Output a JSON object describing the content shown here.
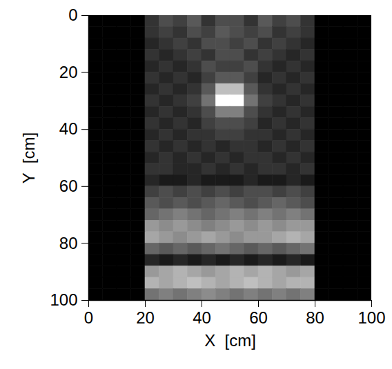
{
  "chart_data": {
    "type": "heatmap",
    "xlabel": "X  [cm]",
    "ylabel": "Y  [cm]",
    "xlim": [
      0,
      100
    ],
    "ylim": [
      0,
      100
    ],
    "xticks": [
      0,
      20,
      40,
      60,
      80,
      100
    ],
    "yticks": [
      0,
      20,
      40,
      60,
      80,
      100
    ],
    "x_bins": [
      0,
      5,
      10,
      15,
      20,
      25,
      30,
      35,
      40,
      45,
      50,
      55,
      60,
      65,
      70,
      75,
      80,
      85,
      90,
      95,
      100
    ],
    "y_bins": [
      0,
      4,
      8,
      12,
      16,
      20,
      24,
      28,
      32,
      36,
      40,
      44,
      48,
      52,
      56,
      60,
      64,
      68,
      72,
      76,
      80,
      84,
      88,
      92,
      96,
      100
    ],
    "values": [
      [
        0,
        0,
        0,
        0,
        0.2,
        0.3,
        0.25,
        0.35,
        0.2,
        0.3,
        0.3,
        0.2,
        0.35,
        0.25,
        0.3,
        0.2,
        0,
        0,
        0,
        0
      ],
      [
        0,
        0,
        0,
        0,
        0.2,
        0.25,
        0.2,
        0.3,
        0.25,
        0.35,
        0.3,
        0.25,
        0.3,
        0.2,
        0.25,
        0.2,
        0,
        0,
        0,
        0
      ],
      [
        0,
        0,
        0,
        0,
        0.15,
        0.2,
        0.25,
        0.2,
        0.3,
        0.3,
        0.25,
        0.3,
        0.2,
        0.25,
        0.2,
        0.15,
        0,
        0,
        0,
        0
      ],
      [
        0,
        0,
        0,
        0,
        0.2,
        0.15,
        0.2,
        0.25,
        0.2,
        0.3,
        0.3,
        0.2,
        0.25,
        0.2,
        0.15,
        0.2,
        0,
        0,
        0,
        0
      ],
      [
        0,
        0,
        0,
        0,
        0.15,
        0.2,
        0.15,
        0.2,
        0.3,
        0.25,
        0.25,
        0.3,
        0.2,
        0.15,
        0.2,
        0.15,
        0,
        0,
        0,
        0
      ],
      [
        0,
        0,
        0,
        0,
        0.2,
        0.15,
        0.2,
        0.15,
        0.25,
        0.35,
        0.35,
        0.25,
        0.15,
        0.2,
        0.15,
        0.2,
        0,
        0,
        0,
        0
      ],
      [
        0,
        0,
        0,
        0,
        0.15,
        0.2,
        0.15,
        0.2,
        0.35,
        0.75,
        0.75,
        0.35,
        0.2,
        0.15,
        0.2,
        0.15,
        0,
        0,
        0,
        0
      ],
      [
        0,
        0,
        0,
        0,
        0.2,
        0.15,
        0.2,
        0.25,
        0.45,
        1,
        1,
        0.45,
        0.25,
        0.2,
        0.15,
        0.2,
        0,
        0,
        0,
        0
      ],
      [
        0,
        0,
        0,
        0,
        0.15,
        0.2,
        0.15,
        0.2,
        0.3,
        0.5,
        0.5,
        0.3,
        0.2,
        0.15,
        0.2,
        0.15,
        0,
        0,
        0,
        0
      ],
      [
        0,
        0,
        0,
        0,
        0.2,
        0.15,
        0.2,
        0.15,
        0.25,
        0.3,
        0.3,
        0.25,
        0.15,
        0.2,
        0.15,
        0.2,
        0,
        0,
        0,
        0
      ],
      [
        0,
        0,
        0,
        0,
        0.15,
        0.2,
        0.15,
        0.2,
        0.2,
        0.25,
        0.25,
        0.2,
        0.2,
        0.15,
        0.2,
        0.15,
        0,
        0,
        0,
        0
      ],
      [
        0,
        0,
        0,
        0,
        0.2,
        0.15,
        0.2,
        0.15,
        0.2,
        0.15,
        0.2,
        0.2,
        0.15,
        0.2,
        0.15,
        0.2,
        0,
        0,
        0,
        0
      ],
      [
        0,
        0,
        0,
        0,
        0.15,
        0.2,
        0.15,
        0.2,
        0.15,
        0.2,
        0.15,
        0.2,
        0.2,
        0.15,
        0.2,
        0.15,
        0,
        0,
        0,
        0
      ],
      [
        0,
        0,
        0,
        0,
        0.2,
        0.2,
        0.15,
        0.15,
        0.2,
        0.15,
        0.2,
        0.15,
        0.2,
        0.2,
        0.15,
        0.2,
        0,
        0,
        0,
        0
      ],
      [
        0,
        0,
        0,
        0,
        0.15,
        0.1,
        0.1,
        0.15,
        0.1,
        0.1,
        0.1,
        0.15,
        0.1,
        0.1,
        0.15,
        0.1,
        0,
        0,
        0,
        0
      ],
      [
        0,
        0,
        0,
        0,
        0.25,
        0.3,
        0.25,
        0.3,
        0.25,
        0.3,
        0.25,
        0.3,
        0.3,
        0.25,
        0.3,
        0.25,
        0,
        0,
        0,
        0
      ],
      [
        0,
        0,
        0,
        0,
        0.35,
        0.3,
        0.35,
        0.3,
        0.35,
        0.4,
        0.35,
        0.3,
        0.35,
        0.4,
        0.35,
        0.3,
        0,
        0,
        0,
        0
      ],
      [
        0,
        0,
        0,
        0,
        0.4,
        0.45,
        0.5,
        0.45,
        0.4,
        0.45,
        0.5,
        0.45,
        0.5,
        0.45,
        0.5,
        0.45,
        0,
        0,
        0,
        0
      ],
      [
        0,
        0,
        0,
        0,
        0.6,
        0.55,
        0.6,
        0.55,
        0.5,
        0.55,
        0.6,
        0.55,
        0.6,
        0.55,
        0.6,
        0.6,
        0,
        0,
        0,
        0
      ],
      [
        0,
        0,
        0,
        0,
        0.65,
        0.6,
        0.55,
        0.6,
        0.65,
        0.6,
        0.55,
        0.6,
        0.6,
        0.65,
        0.7,
        0.65,
        0,
        0,
        0,
        0
      ],
      [
        0,
        0,
        0,
        0,
        0.4,
        0.35,
        0.4,
        0.35,
        0.4,
        0.45,
        0.4,
        0.35,
        0.4,
        0.35,
        0.4,
        0.45,
        0,
        0,
        0,
        0
      ],
      [
        0,
        0,
        0,
        0,
        0.15,
        0.1,
        0.15,
        0.1,
        0.15,
        0.1,
        0.15,
        0.1,
        0.15,
        0.1,
        0.15,
        0.1,
        0,
        0,
        0,
        0
      ],
      [
        0,
        0,
        0,
        0,
        0.6,
        0.65,
        0.7,
        0.65,
        0.6,
        0.65,
        0.7,
        0.65,
        0.7,
        0.65,
        0.6,
        0.65,
        0,
        0,
        0,
        0
      ],
      [
        0,
        0,
        0,
        0,
        0.7,
        0.65,
        0.7,
        0.75,
        0.7,
        0.65,
        0.7,
        0.75,
        0.7,
        0.65,
        0.7,
        0.7,
        0,
        0,
        0,
        0
      ],
      [
        0,
        0,
        0,
        0,
        0.45,
        0.5,
        0.45,
        0.5,
        0.55,
        0.5,
        0.45,
        0.5,
        0.45,
        0.5,
        0.45,
        0.5,
        0,
        0,
        0,
        0
      ]
    ]
  }
}
